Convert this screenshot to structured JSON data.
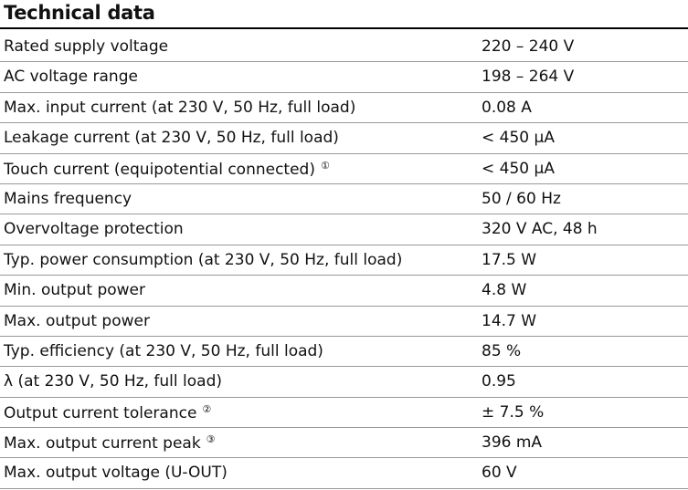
{
  "header": {
    "title": "Technical data"
  },
  "table": {
    "rows": [
      {
        "label": "Rated supply voltage",
        "value": "220 – 240 V"
      },
      {
        "label": "AC voltage range",
        "value": "198 – 264 V"
      },
      {
        "label": "Max. input current (at 230 V, 50 Hz, full load)",
        "value": "0.08 A"
      },
      {
        "label": "Leakage current (at 230 V, 50 Hz, full load)",
        "value": "< 450 µA"
      },
      {
        "label": "Touch current (equipotential connected)",
        "note": "①",
        "value": "< 450 µA"
      },
      {
        "label": "Mains frequency",
        "value": "50 / 60 Hz"
      },
      {
        "label": "Overvoltage protection",
        "value": "320 V AC, 48 h"
      },
      {
        "label": "Typ. power consumption (at 230 V, 50 Hz, full load)",
        "value": "17.5 W"
      },
      {
        "label": "Min. output power",
        "value": "4.8 W"
      },
      {
        "label": "Max. output power",
        "value": "14.7 W"
      },
      {
        "label": "Typ. efficiency (at 230 V, 50 Hz, full load)",
        "value": "85 %"
      },
      {
        "label": "λ (at 230 V, 50 Hz, full load)",
        "value": "0.95"
      },
      {
        "label": "Output current tolerance",
        "note": "②",
        "value": "± 7.5 %"
      },
      {
        "label": "Max. output current peak",
        "note": "③",
        "value": "396 mA"
      },
      {
        "label": "Max. output voltage (U-OUT)",
        "value": "60 V"
      }
    ]
  }
}
